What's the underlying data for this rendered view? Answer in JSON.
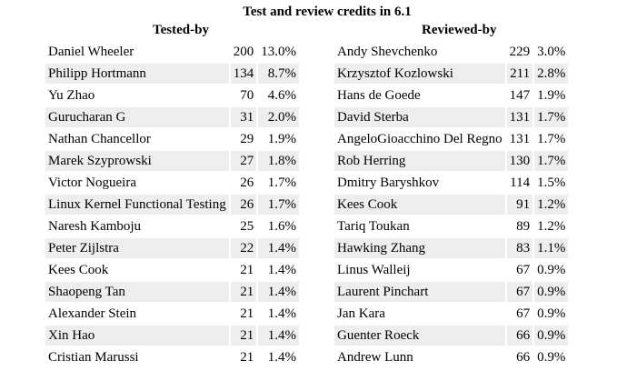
{
  "title": "Test and review credits in 6.1",
  "tested_header": "Tested-by",
  "reviewed_header": "Reviewed-by",
  "tested": [
    {
      "name": "Daniel Wheeler",
      "count": "200",
      "pct": "13.0%"
    },
    {
      "name": "Philipp Hortmann",
      "count": "134",
      "pct": "8.7%"
    },
    {
      "name": "Yu Zhao",
      "count": "70",
      "pct": "4.6%"
    },
    {
      "name": "Gurucharan G",
      "count": "31",
      "pct": "2.0%"
    },
    {
      "name": "Nathan Chancellor",
      "count": "29",
      "pct": "1.9%"
    },
    {
      "name": "Marek Szyprowski",
      "count": "27",
      "pct": "1.8%"
    },
    {
      "name": "Victor Nogueira",
      "count": "26",
      "pct": "1.7%"
    },
    {
      "name": "Linux Kernel Functional Testing",
      "count": "26",
      "pct": "1.7%"
    },
    {
      "name": "Naresh Kamboju",
      "count": "25",
      "pct": "1.6%"
    },
    {
      "name": "Peter Zijlstra",
      "count": "22",
      "pct": "1.4%"
    },
    {
      "name": "Kees Cook",
      "count": "21",
      "pct": "1.4%"
    },
    {
      "name": "Shaopeng Tan",
      "count": "21",
      "pct": "1.4%"
    },
    {
      "name": "Alexander Stein",
      "count": "21",
      "pct": "1.4%"
    },
    {
      "name": "Xin Hao",
      "count": "21",
      "pct": "1.4%"
    },
    {
      "name": "Cristian Marussi",
      "count": "21",
      "pct": "1.4%"
    }
  ],
  "reviewed": [
    {
      "name": "Andy Shevchenko",
      "count": "229",
      "pct": "3.0%"
    },
    {
      "name": "Krzysztof Kozlowski",
      "count": "211",
      "pct": "2.8%"
    },
    {
      "name": "Hans de Goede",
      "count": "147",
      "pct": "1.9%"
    },
    {
      "name": "David Sterba",
      "count": "131",
      "pct": "1.7%"
    },
    {
      "name": "AngeloGioacchino Del Regno",
      "count": "131",
      "pct": "1.7%"
    },
    {
      "name": "Rob Herring",
      "count": "130",
      "pct": "1.7%"
    },
    {
      "name": "Dmitry Baryshkov",
      "count": "114",
      "pct": "1.5%"
    },
    {
      "name": "Kees Cook",
      "count": "91",
      "pct": "1.2%"
    },
    {
      "name": "Tariq Toukan",
      "count": "89",
      "pct": "1.2%"
    },
    {
      "name": "Hawking Zhang",
      "count": "83",
      "pct": "1.1%"
    },
    {
      "name": "Linus Walleij",
      "count": "67",
      "pct": "0.9%"
    },
    {
      "name": "Laurent Pinchart",
      "count": "67",
      "pct": "0.9%"
    },
    {
      "name": "Jan Kara",
      "count": "67",
      "pct": "0.9%"
    },
    {
      "name": "Guenter Roeck",
      "count": "66",
      "pct": "0.9%"
    },
    {
      "name": "Andrew Lunn",
      "count": "66",
      "pct": "0.9%"
    }
  ]
}
